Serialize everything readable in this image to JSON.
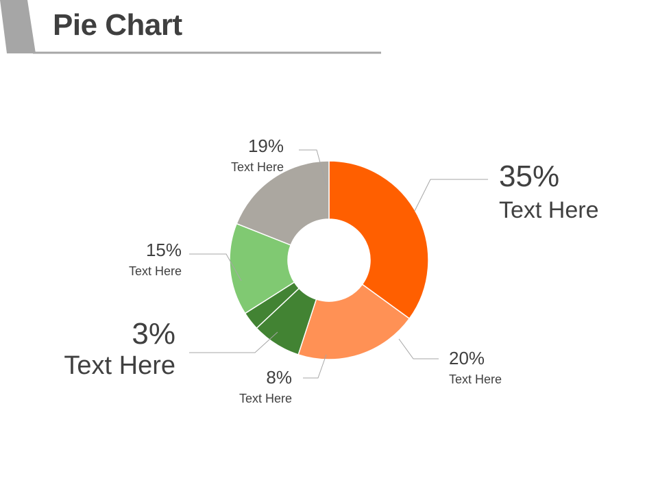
{
  "header": {
    "title": "Pie Chart"
  },
  "chart_data": {
    "type": "pie",
    "donut": true,
    "title": "",
    "slices": [
      {
        "value": 35,
        "pct_label": "35%",
        "label": "Text Here",
        "color": "#ff5f00"
      },
      {
        "value": 20,
        "pct_label": "20%",
        "label": "Text Here",
        "color": "#ff9155"
      },
      {
        "value": 8,
        "pct_label": "8%",
        "label": "Text Here",
        "color": "#428333"
      },
      {
        "value": 3,
        "pct_label": "3%",
        "label": "Text Here",
        "color": "#428333"
      },
      {
        "value": 15,
        "pct_label": "15%",
        "label": "Text Here",
        "color": "#80c972"
      },
      {
        "value": 19,
        "pct_label": "19%",
        "label": "Text Here",
        "color": "#aba7a0"
      }
    ]
  }
}
